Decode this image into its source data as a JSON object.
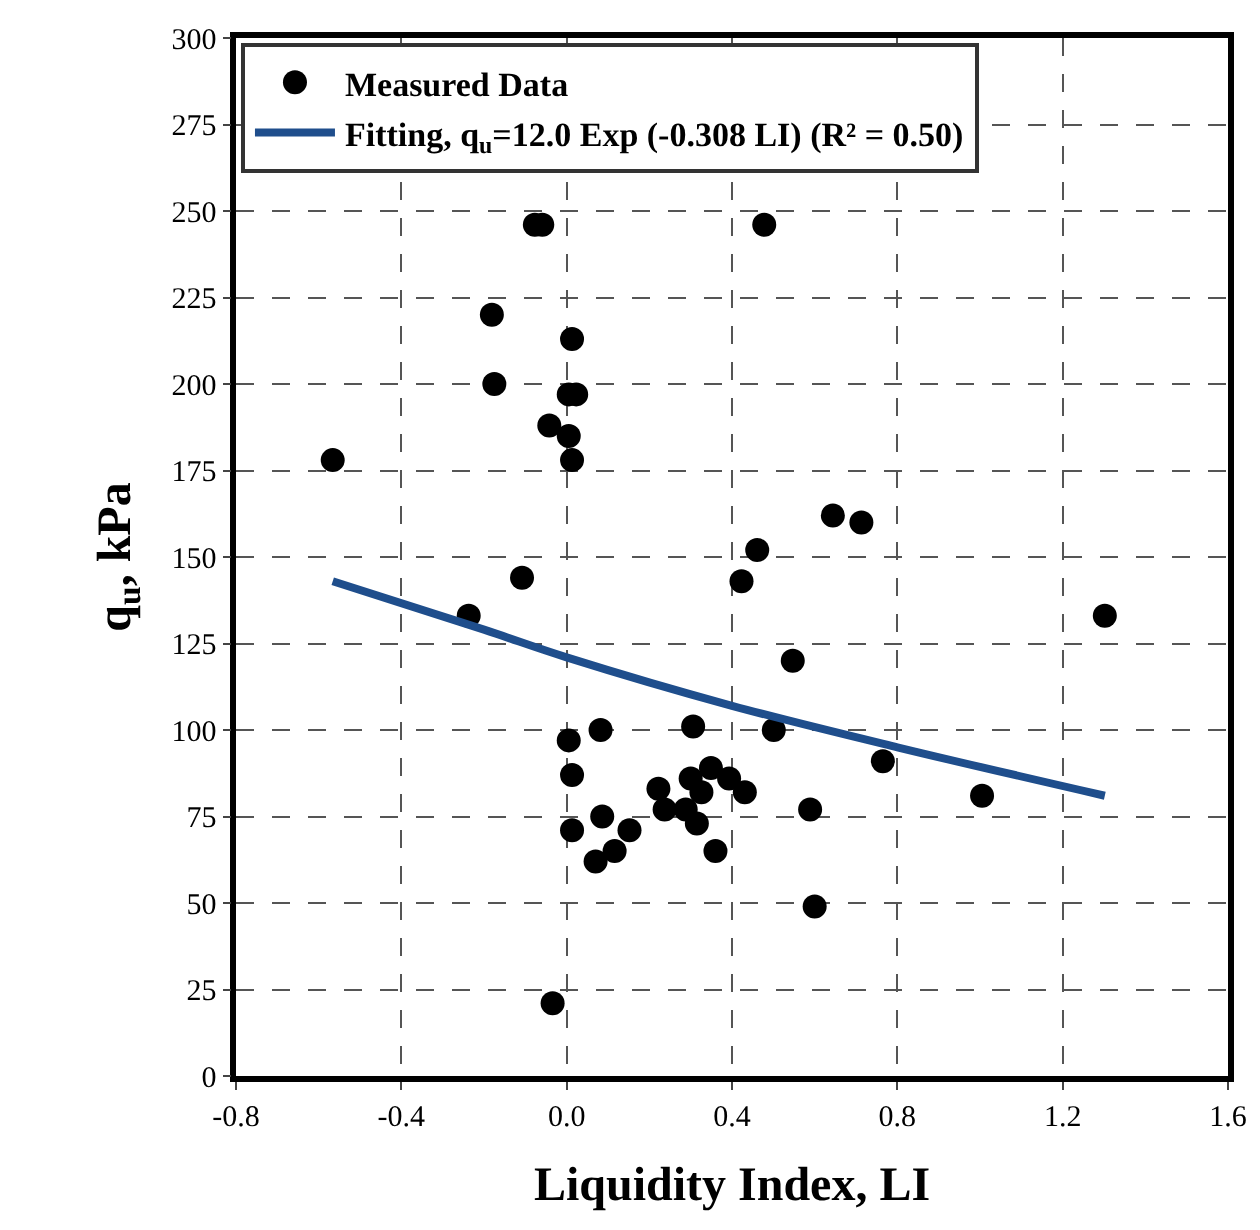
{
  "chart_data": {
    "type": "scatter",
    "xlabel": "Liquidity Index, LI",
    "ylabel": "q$_{u}$, kPa",
    "xlim": [
      -0.8,
      1.6
    ],
    "xticks": [
      -0.8,
      -0.4,
      {
        "value": 0,
        "label": "0.0"
      },
      0.4,
      0.8,
      1.2,
      1.6
    ],
    "ylim": [
      0,
      300
    ],
    "yticks": [
      0,
      25,
      50,
      75,
      100,
      125,
      150,
      175,
      200,
      225,
      250,
      275,
      300
    ],
    "grid": true,
    "legend": "top",
    "marker": "circle",
    "series": [
      {
        "name": "Measured Data",
        "color": "#000000",
        "x": [
          -0.077,
          -0.059,
          -0.181,
          0.013,
          -0.175,
          0.005,
          0.023,
          -0.042,
          0.005,
          0.013,
          -0.566,
          -0.108,
          -0.237,
          0.478,
          0.644,
          0.713,
          0.461,
          0.423,
          1.302,
          0.547,
          0.005,
          0.082,
          0.306,
          0.013,
          0.222,
          0.3,
          0.349,
          0.393,
          0.431,
          0.326,
          0.237,
          0.288,
          0.315,
          0.086,
          0.013,
          0.152,
          0.116,
          0.07,
          0.36,
          -0.034,
          0.501,
          0.765,
          0.589,
          0.6,
          1.005
        ],
        "values": [
          246,
          246,
          220,
          213,
          200,
          197,
          197,
          188,
          185,
          178,
          178,
          144,
          133,
          246,
          162,
          160,
          152,
          143,
          133,
          120,
          97,
          100,
          101,
          87,
          83,
          86,
          89,
          86,
          82,
          82,
          77,
          77,
          73,
          75,
          71,
          71,
          65,
          62,
          65,
          21,
          100,
          91,
          77,
          49,
          81
        ]
      },
      {
        "name": "Fitting, q$_{u}$=12.0 Exp (-0.308 LI) (R² = 0.50)",
        "type": "line",
        "color": "#1f4e8c",
        "marker": "none",
        "line_style": "solid",
        "x": [
          -0.566,
          -0.2,
          0.0,
          0.4,
          0.8,
          1.302
        ],
        "values": [
          143,
          129,
          121,
          107,
          95,
          81
        ]
      }
    ]
  }
}
